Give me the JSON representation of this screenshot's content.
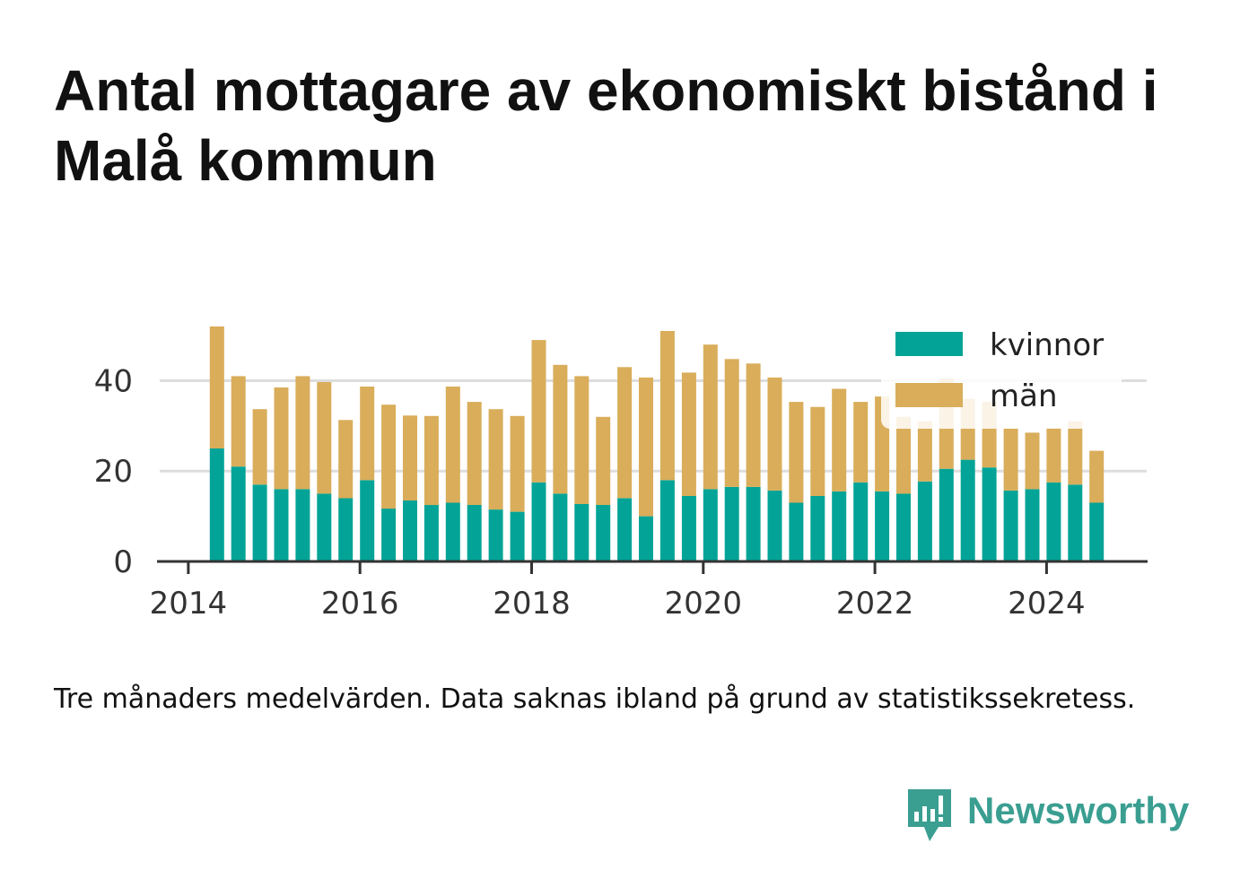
{
  "title": "Antal mottagare av ekonomiskt bistånd i Malå kommun",
  "note": "Tre månaders medelvärden. Data saknas ibland på grund av statistikssekretess.",
  "brand": {
    "name": "Newsworthy",
    "icon": "newsworthy-bar-chart-speech-bubble-icon",
    "color": "#3a9e91"
  },
  "colors": {
    "kvinnor": "#03a497",
    "man": "#d9ad5a",
    "axis": "#333333",
    "grid": "#dddddd"
  },
  "chart_data": {
    "type": "bar",
    "stacked": true,
    "x": [
      "2014-05",
      "2014-08",
      "2014-11",
      "2015-02",
      "2015-05",
      "2015-08",
      "2015-11",
      "2016-02",
      "2016-05",
      "2016-08",
      "2016-11",
      "2017-02",
      "2017-05",
      "2017-08",
      "2017-11",
      "2018-02",
      "2018-05",
      "2018-08",
      "2018-11",
      "2019-02",
      "2019-05",
      "2019-08",
      "2019-11",
      "2020-02",
      "2020-05",
      "2020-08",
      "2020-11",
      "2021-02",
      "2021-05",
      "2021-08",
      "2021-11",
      "2022-02",
      "2022-05",
      "2022-08",
      "2022-11",
      "2023-02",
      "2023-05",
      "2023-08",
      "2023-11",
      "2024-02",
      "2024-05",
      "2024-08"
    ],
    "series": [
      {
        "name": "kvinnor",
        "values": [
          25,
          21,
          17,
          16,
          16,
          15,
          14,
          18,
          11.7,
          13.5,
          12.5,
          13,
          12.5,
          11.5,
          11,
          17.5,
          15,
          12.7,
          12.5,
          14,
          10,
          18,
          14.5,
          16,
          16.5,
          16.5,
          15.7,
          13,
          14.5,
          15.5,
          17.5,
          15.5,
          15,
          17.7,
          20.5,
          22.5,
          20.8,
          15.7,
          16,
          17.5,
          17,
          13
        ]
      },
      {
        "name": "män",
        "values": [
          27,
          20,
          16.7,
          22.5,
          25,
          24.7,
          17.3,
          20.7,
          23,
          18.8,
          19.7,
          25.7,
          22.8,
          22.2,
          21.2,
          31.5,
          28.5,
          28.3,
          19.5,
          29,
          30.7,
          33,
          27.3,
          32,
          28.3,
          27.3,
          25,
          22.3,
          19.7,
          22.7,
          17.8,
          21,
          17,
          13.3,
          20,
          13.5,
          14.5,
          13.7,
          12.5,
          12,
          14,
          11.5
        ]
      }
    ],
    "xlim": [
      "2013-09",
      "2025-03"
    ],
    "ylim": [
      0,
      52
    ],
    "x_ticks": [
      "2014",
      "2016",
      "2018",
      "2020",
      "2022",
      "2024"
    ],
    "y_ticks": [
      0,
      20,
      40
    ],
    "grid": "horizontal",
    "legend": {
      "position": "top-right",
      "entries": [
        "kvinnor",
        "män"
      ]
    }
  }
}
